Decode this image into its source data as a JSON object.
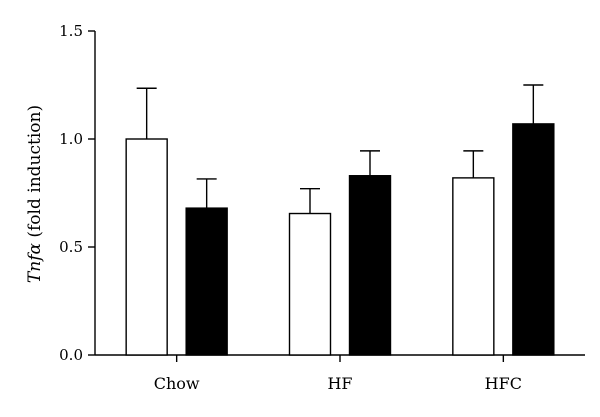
{
  "chart_data": {
    "type": "bar",
    "title": "",
    "xlabel": "",
    "ylabel_italic": "Tnfα",
    "ylabel_rest": " (fold induction)",
    "ylim": [
      0,
      1.5
    ],
    "yticks": [
      "0.0",
      "0.5",
      "1.0",
      "1.5"
    ],
    "categories": [
      "Chow",
      "HF",
      "HFC"
    ],
    "series": [
      {
        "fill": "#ffffff",
        "values": [
          1.0,
          0.655,
          0.82
        ],
        "errors": [
          0.235,
          0.115,
          0.125
        ]
      },
      {
        "fill": "#000000",
        "values": [
          0.68,
          0.83,
          1.07
        ],
        "errors": [
          0.135,
          0.115,
          0.18
        ]
      }
    ],
    "grid": false,
    "legend": "none"
  }
}
